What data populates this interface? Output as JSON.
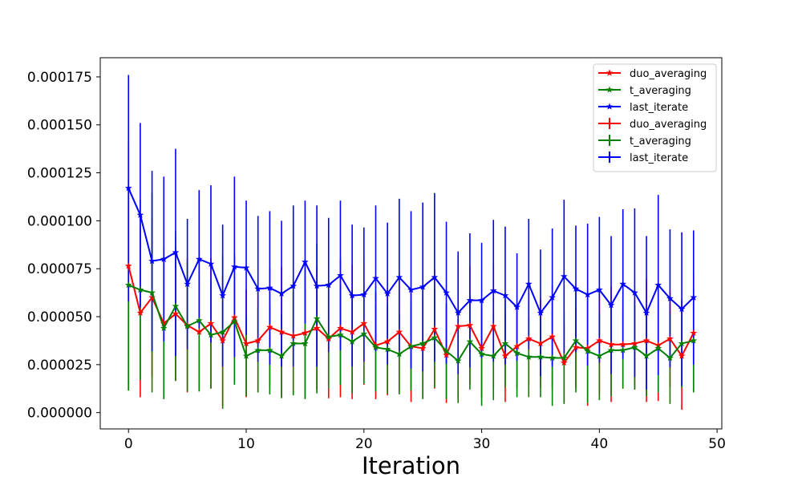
{
  "chart_data": {
    "type": "line",
    "title": "",
    "xlabel": "Iteration",
    "ylabel": "",
    "xlim": [
      -2.4,
      50.4
    ],
    "ylim": [
      -8.5e-06,
      0.000185
    ],
    "xticks": [
      0,
      10,
      20,
      30,
      40,
      50
    ],
    "xtick_labels": [
      "0",
      "10",
      "20",
      "30",
      "40",
      "50"
    ],
    "yticks": [
      0,
      2.5e-05,
      5e-05,
      7.5e-05,
      0.0001,
      0.000125,
      0.00015,
      0.000175
    ],
    "ytick_labels": [
      "0.000000",
      "0.000025",
      "0.000050",
      "0.000075",
      "0.000100",
      "0.000125",
      "0.000150",
      "0.000175"
    ],
    "grid": false,
    "legend_position": "top-right",
    "legend_entries": [
      {
        "label": "duo_averaging",
        "kind": "line-marker",
        "color": "#ff0000"
      },
      {
        "label": "t_averaging",
        "kind": "line-marker",
        "color": "#008000"
      },
      {
        "label": "last_iterate",
        "kind": "line-marker",
        "color": "#0000ff"
      },
      {
        "label": "duo_averaging",
        "kind": "errorbar",
        "color": "#ff0000"
      },
      {
        "label": "t_averaging",
        "kind": "errorbar",
        "color": "#008000"
      },
      {
        "label": "last_iterate",
        "kind": "errorbar",
        "color": "#0000ff"
      }
    ],
    "x": [
      0,
      1,
      2,
      3,
      4,
      5,
      6,
      7,
      8,
      9,
      10,
      11,
      12,
      13,
      14,
      15,
      16,
      17,
      18,
      19,
      20,
      21,
      22,
      23,
      24,
      25,
      26,
      27,
      28,
      29,
      30,
      31,
      32,
      33,
      34,
      35,
      36,
      37,
      38,
      39,
      40,
      41,
      42,
      43,
      44,
      45,
      46,
      47,
      48
    ],
    "series": [
      {
        "name": "duo_averaging",
        "color": "#ff0000",
        "values": [
          7.65e-05,
          5.2e-05,
          6e-05,
          4.65e-05,
          5.15e-05,
          4.55e-05,
          4.2e-05,
          4.65e-05,
          3.75e-05,
          4.95e-05,
          3.6e-05,
          3.75e-05,
          4.45e-05,
          4.2e-05,
          4e-05,
          4.15e-05,
          4.4e-05,
          3.85e-05,
          4.4e-05,
          4.2e-05,
          4.65e-05,
          3.5e-05,
          3.7e-05,
          4.2e-05,
          3.45e-05,
          3.35e-05,
          4.35e-05,
          3e-05,
          4.5e-05,
          4.55e-05,
          3.35e-05,
          4.5e-05,
          2.95e-05,
          3.45e-05,
          3.85e-05,
          3.6e-05,
          3.95e-05,
          2.6e-05,
          3.4e-05,
          3.35e-05,
          3.75e-05,
          3.55e-05,
          3.55e-05,
          3.6e-05,
          3.75e-05,
          3.5e-05,
          3.85e-05,
          2.95e-05,
          4.15e-05
        ],
        "errors": [
          6.5e-05,
          4.4e-05,
          4.1e-05,
          3.9e-05,
          3.5e-05,
          3.5e-05,
          2.9e-05,
          3.4e-05,
          3.4e-05,
          3.3e-05,
          2.8e-05,
          2.7e-05,
          3.1e-05,
          3.4e-05,
          3e-05,
          3.4e-05,
          3.2e-05,
          3.1e-05,
          3.6e-05,
          3.5e-05,
          3.2e-05,
          2.8e-05,
          2.8e-05,
          3.1e-05,
          2.9e-05,
          2.6e-05,
          3.1e-05,
          2.5e-05,
          3.7e-05,
          3.1e-05,
          2.6e-05,
          3.2e-05,
          2.4e-05,
          2.2e-05,
          2.4e-05,
          2.3e-05,
          2.7e-05,
          2.1e-05,
          2.1e-05,
          3e-05,
          2.8e-05,
          3e-05,
          2.3e-05,
          2.4e-05,
          3.2e-05,
          2.9e-05,
          2.5e-05,
          2.8e-05,
          3.1e-05
        ]
      },
      {
        "name": "t_averaging",
        "color": "#008000",
        "values": [
          6.65e-05,
          6.4e-05,
          6.25e-05,
          4.4e-05,
          5.55e-05,
          4.5e-05,
          4.8e-05,
          4.05e-05,
          4.2e-05,
          4.75e-05,
          2.95e-05,
          3.25e-05,
          3.25e-05,
          2.95e-05,
          3.6e-05,
          3.6e-05,
          4.9e-05,
          3.95e-05,
          4.05e-05,
          3.7e-05,
          4.1e-05,
          3.4e-05,
          3.3e-05,
          3.05e-05,
          3.45e-05,
          3.6e-05,
          3.9e-05,
          3.2e-05,
          2.7e-05,
          3.7e-05,
          3.05e-05,
          2.95e-05,
          3.6e-05,
          3.1e-05,
          2.9e-05,
          2.9e-05,
          2.85e-05,
          2.85e-05,
          3.75e-05,
          3.2e-05,
          2.95e-05,
          3.25e-05,
          3.25e-05,
          3.4e-05,
          2.95e-05,
          3.35e-05,
          2.85e-05,
          3.6e-05,
          3.75e-05
        ],
        "errors": [
          5.5e-05,
          4.7e-05,
          5.2e-05,
          3.7e-05,
          3.9e-05,
          3.4e-05,
          3.7e-05,
          2.8e-05,
          4e-05,
          3.3e-05,
          2.1e-05,
          2.2e-05,
          2.3e-05,
          2.2e-05,
          2.7e-05,
          2.9e-05,
          3.9e-05,
          2.7e-05,
          2.6e-05,
          2.7e-05,
          2.6e-05,
          2.3e-05,
          2.3e-05,
          2.1e-05,
          2.3e-05,
          2.9e-05,
          2.6e-05,
          2.5e-05,
          2.2e-05,
          2.5e-05,
          2.7e-05,
          2.3e-05,
          2.3e-05,
          2.3e-05,
          2.1e-05,
          2.1e-05,
          2.5e-05,
          2.4e-05,
          2.7e-05,
          2.7e-05,
          2.3e-05,
          2.4e-05,
          2e-05,
          2.2e-05,
          2.1e-05,
          2.3e-05,
          2.4e-05,
          2.3e-05,
          2.7e-05
        ]
      },
      {
        "name": "last_iterate",
        "color": "#0000ff",
        "values": [
          0.000117,
          0.000103,
          7.9e-05,
          8e-05,
          8.35e-05,
          6.7e-05,
          8e-05,
          7.75e-05,
          6.1e-05,
          7.6e-05,
          7.55e-05,
          6.45e-05,
          6.5e-05,
          6.2e-05,
          6.6e-05,
          7.85e-05,
          6.6e-05,
          6.65e-05,
          7.15e-05,
          6.1e-05,
          6.15e-05,
          7e-05,
          6.2e-05,
          7.05e-05,
          6.4e-05,
          6.55e-05,
          7.05e-05,
          6.25e-05,
          5.2e-05,
          5.85e-05,
          5.85e-05,
          6.35e-05,
          6.1e-05,
          5.5e-05,
          6.7e-05,
          5.2e-05,
          6e-05,
          7.1e-05,
          6.45e-05,
          6.15e-05,
          6.4e-05,
          5.6e-05,
          6.7e-05,
          6.25e-05,
          5.2e-05,
          6.65e-05,
          5.95e-05,
          5.4e-05,
          6e-05
        ],
        "errors": [
          5.9e-05,
          4.8e-05,
          4.7e-05,
          4.3e-05,
          5.4e-05,
          3.4e-05,
          3.6e-05,
          4.1e-05,
          3.7e-05,
          4.7e-05,
          3.5e-05,
          3.8e-05,
          4e-05,
          3.8e-05,
          4.2e-05,
          3.2e-05,
          4.2e-05,
          3.5e-05,
          3.9e-05,
          3.7e-05,
          3.5e-05,
          3.8e-05,
          3.7e-05,
          4.1e-05,
          4.1e-05,
          4.4e-05,
          4.4e-05,
          3.7e-05,
          3.2e-05,
          3.5e-05,
          3e-05,
          3.7e-05,
          3.6e-05,
          2.8e-05,
          3.4e-05,
          3.3e-05,
          3.6e-05,
          4e-05,
          3.3e-05,
          3.7e-05,
          3.8e-05,
          3.6e-05,
          3.9e-05,
          4.4e-05,
          4e-05,
          4.7e-05,
          3.6e-05,
          4e-05,
          3.5e-05
        ]
      }
    ]
  }
}
